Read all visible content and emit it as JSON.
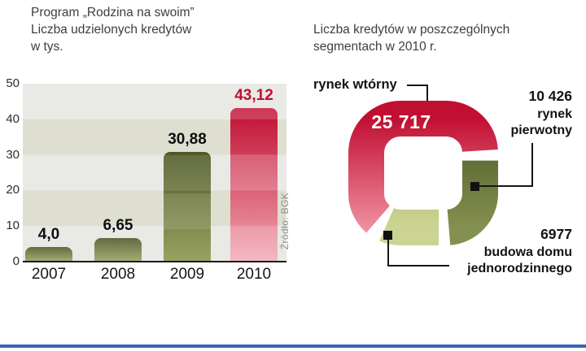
{
  "colors": {
    "accent_blue": "#3566b8",
    "red": "#c00e31",
    "olive_dark": "#55602a",
    "olive_light": "#a9b45a"
  },
  "chart_data": [
    {
      "type": "bar",
      "title": "Program „Rodzina na swoim” — Liczba udzielonych kredytów w tys.",
      "title_lines": [
        "Program „Rodzina na swoim”",
        "Liczba udzielonych kredytów",
        "w tys."
      ],
      "categories": [
        "2007",
        "2008",
        "2009",
        "2010"
      ],
      "values": [
        4.0,
        6.65,
        30.88,
        43.12
      ],
      "value_labels": [
        "4,0",
        "6,65",
        "30,88",
        "43,12"
      ],
      "ylim": [
        0,
        50
      ],
      "ytick_labels": [
        "50",
        "40",
        "30",
        "20",
        "10",
        "0"
      ],
      "bar_colors": [
        "olive",
        "olive",
        "olive",
        "red"
      ],
      "grid": "banded",
      "source": "Źródło: BGK"
    },
    {
      "type": "pie",
      "title": "Liczba kredytów w poszczególnych segmentach w 2010 r.",
      "title_lines": [
        "Liczba kredytów w poszczególnych",
        "segmentach w 2010 r."
      ],
      "segments": [
        {
          "label": "rynek wtórny",
          "value": 25717,
          "display": "25 717",
          "color": "#c00e31"
        },
        {
          "label": "rynek pierwotny",
          "value": 10426,
          "display": "10 426",
          "color": "#55602a"
        },
        {
          "label": "budowa domu jednorodzinnego",
          "value": 6977,
          "display": "6977",
          "color": "#a9b45a"
        }
      ]
    }
  ]
}
